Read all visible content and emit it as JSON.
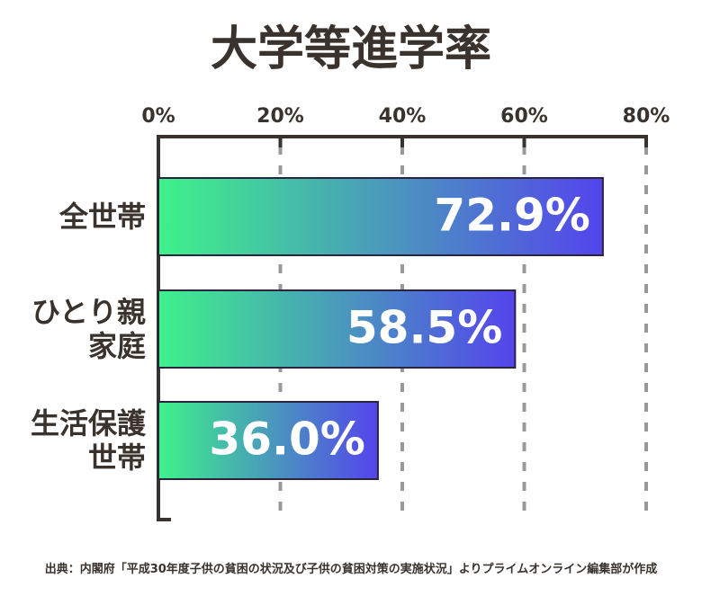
{
  "chart_data": {
    "type": "bar",
    "orientation": "horizontal",
    "title": "大学等進学率",
    "categories": [
      "全世帯",
      "ひとり親\n家庭",
      "生活保護\n世帯"
    ],
    "values": [
      72.9,
      58.5,
      36.0
    ],
    "value_labels": [
      "72.9%",
      "58.5%",
      "36.0%"
    ],
    "gradient": [
      "#3ef28a",
      "#5444ec"
    ],
    "xlim": [
      0,
      80
    ],
    "xticks": [
      {
        "value": 0,
        "label": "0%"
      },
      {
        "value": 20,
        "label": "20%"
      },
      {
        "value": 40,
        "label": "40%"
      },
      {
        "value": 60,
        "label": "60%"
      },
      {
        "value": 80,
        "label": "80%"
      }
    ],
    "grid": true,
    "source": "出典：内閣府「平成30年度子供の貧困の状況及び子供の貧困対策の実施状況」よりプライムオンライン編集部が作成"
  }
}
